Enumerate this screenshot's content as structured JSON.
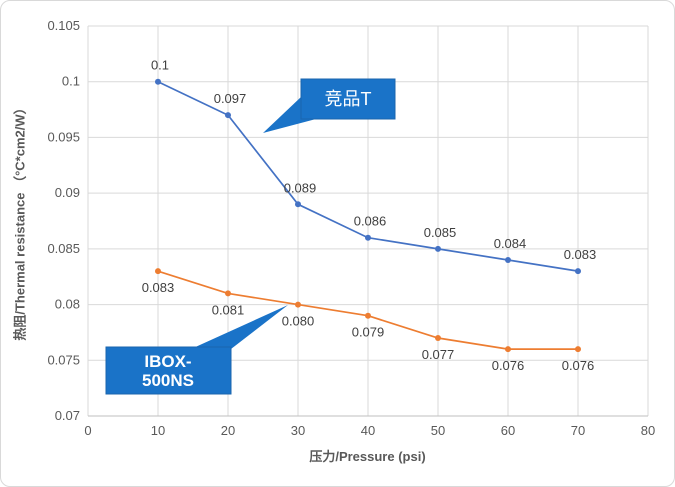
{
  "chart_data": {
    "type": "line",
    "title": "",
    "xlabel": "压力/Pressure (psi)",
    "ylabel": "热阻/Thermal resistance （°C*cm2/W）",
    "x": [
      10,
      20,
      30,
      40,
      50,
      60,
      70
    ],
    "series": [
      {
        "name": "竞品T",
        "color": "#4472C4",
        "values": [
          0.1,
          0.097,
          0.089,
          0.086,
          0.085,
          0.084,
          0.083
        ],
        "labels": [
          "0.1",
          "0.097",
          "0.089",
          "0.086",
          "0.085",
          "0.084",
          "0.083"
        ],
        "label_position": "above"
      },
      {
        "name": "IBOX-500NS",
        "color": "#ED7D31",
        "values": [
          0.083,
          0.081,
          0.08,
          0.079,
          0.077,
          0.076,
          0.076
        ],
        "labels": [
          "0.083",
          "0.081",
          "0.080",
          "0.079",
          "0.077",
          "0.076",
          "0.076"
        ],
        "label_position": "below"
      }
    ],
    "xlim": [
      0,
      80
    ],
    "xticks": [
      "0",
      "10",
      "20",
      "30",
      "40",
      "50",
      "60",
      "70",
      "80"
    ],
    "ylim": [
      0.07,
      0.105
    ],
    "yticks": [
      "0.07",
      "0.075",
      "0.08",
      "0.085",
      "0.09",
      "0.095",
      "0.1",
      "0.105"
    ],
    "grid": true,
    "legend_position": "callouts-on-plot"
  },
  "callouts": {
    "competitor": {
      "lines": [
        "竞品T"
      ]
    },
    "product": {
      "lines": [
        "IBOX-",
        "500NS"
      ]
    }
  },
  "colors": {
    "callout_fill": "#1A73C8",
    "callout_border": "#1B66AE",
    "callout_text": "#FFFFFF",
    "gridline": "#D9D9D9",
    "axis_line": "#BFBFBF",
    "tick_text": "#595959",
    "data_label_text": "#404040",
    "series_blue": "#4472C4",
    "series_orange": "#ED7D31"
  }
}
